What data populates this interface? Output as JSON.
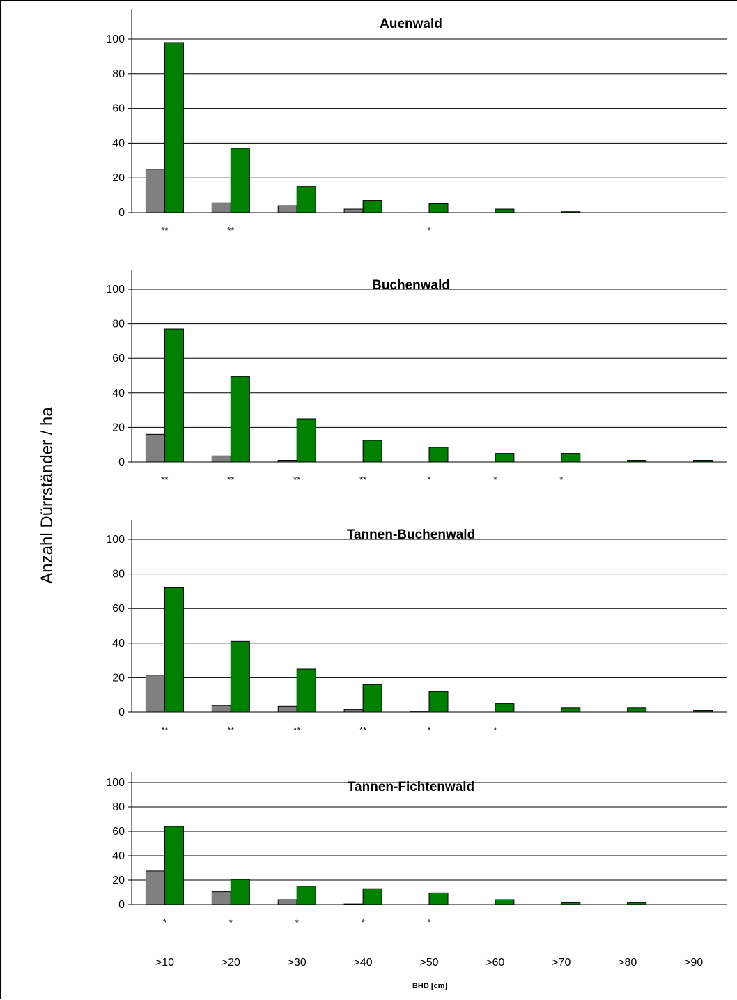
{
  "ylabel": "Anzahl Dürrständer / ha",
  "xlabel": "BHD [cm]",
  "categories": [
    ">10",
    ">20",
    ">30",
    ">40",
    ">50",
    ">60",
    ">70",
    ">80",
    ">90"
  ],
  "colors": {
    "gray": "#808080",
    "green": "#008000",
    "grid": "#000000"
  },
  "chart_data": [
    {
      "type": "bar",
      "title": "Auenwald",
      "categories": [
        ">10",
        ">20",
        ">30",
        ">40",
        ">50",
        ">60",
        ">70",
        ">80",
        ">90"
      ],
      "ylim": [
        0,
        100
      ],
      "yticks": [
        0,
        20,
        40,
        60,
        80,
        100
      ],
      "grid": true,
      "series": [
        {
          "color": "#808080",
          "values": [
            25,
            5.5,
            4,
            2,
            0,
            0,
            0,
            0,
            0
          ]
        },
        {
          "color": "#008000",
          "values": [
            98,
            37,
            15,
            7,
            5,
            2,
            0.5,
            0,
            0
          ]
        }
      ],
      "significance": [
        "**",
        "**",
        "",
        "",
        "*",
        "",
        "",
        "",
        ""
      ]
    },
    {
      "type": "bar",
      "title": "Buchenwald",
      "categories": [
        ">10",
        ">20",
        ">30",
        ">40",
        ">50",
        ">60",
        ">70",
        ">80",
        ">90"
      ],
      "ylim": [
        0,
        100
      ],
      "yticks": [
        0,
        20,
        40,
        60,
        80,
        100
      ],
      "grid": true,
      "series": [
        {
          "color": "#808080",
          "values": [
            16,
            3.5,
            1,
            0,
            0,
            0,
            0,
            0,
            0
          ]
        },
        {
          "color": "#008000",
          "values": [
            77,
            49.5,
            25,
            12.5,
            8.5,
            5,
            5,
            1,
            1
          ]
        }
      ],
      "significance": [
        "**",
        "**",
        "**",
        "**",
        "*",
        "*",
        "*",
        "",
        ""
      ]
    },
    {
      "type": "bar",
      "title": "Tannen-Buchenwald",
      "categories": [
        ">10",
        ">20",
        ">30",
        ">40",
        ">50",
        ">60",
        ">70",
        ">80",
        ">90"
      ],
      "ylim": [
        0,
        100
      ],
      "yticks": [
        0,
        20,
        40,
        60,
        80,
        100
      ],
      "grid": true,
      "series": [
        {
          "color": "#808080",
          "values": [
            21.5,
            4,
            3.5,
            1.5,
            0.5,
            0,
            0,
            0,
            0
          ]
        },
        {
          "color": "#008000",
          "values": [
            72,
            41,
            25,
            16,
            12,
            5,
            2.5,
            2.5,
            1
          ]
        }
      ],
      "significance": [
        "**",
        "**",
        "**",
        "**",
        "*",
        "*",
        "",
        "",
        ""
      ]
    },
    {
      "type": "bar",
      "title": "Tannen-Fichtenwald",
      "categories": [
        ">10",
        ">20",
        ">30",
        ">40",
        ">50",
        ">60",
        ">70",
        ">80",
        ">90"
      ],
      "ylim": [
        0,
        100
      ],
      "yticks": [
        0,
        20,
        40,
        60,
        80,
        100
      ],
      "grid": true,
      "series": [
        {
          "color": "#808080",
          "values": [
            27.5,
            10.5,
            4,
            0.5,
            0,
            0,
            0,
            0,
            0
          ]
        },
        {
          "color": "#008000",
          "values": [
            64,
            20.5,
            15,
            13,
            9.5,
            4,
            1.5,
            1.5,
            0
          ]
        }
      ],
      "significance": [
        "*",
        "*",
        "*",
        "*",
        "*",
        "",
        "",
        "",
        ""
      ]
    }
  ]
}
